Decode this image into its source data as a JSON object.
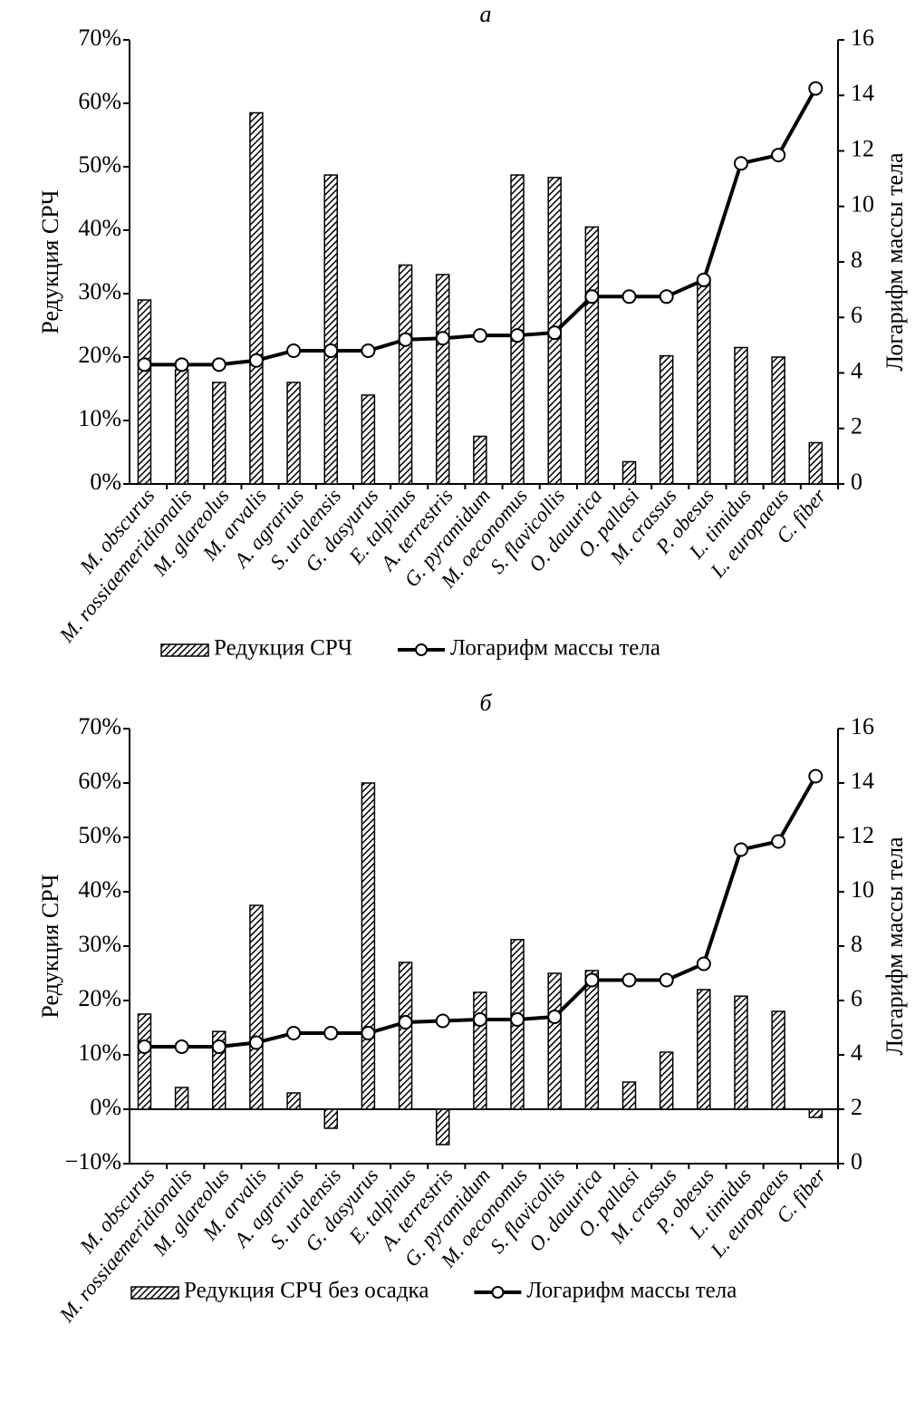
{
  "chart_data": [
    {
      "type": "bar",
      "title": "а",
      "y_label": "Редукция СРЧ",
      "y2_label": "Логарифм массы тела",
      "categories": [
        "M. obscurus",
        "M. rossiaemeridionalis",
        "M. glareolus",
        "M. arvalis",
        "A. agrarius",
        "S. uralensis",
        "G. dasyurus",
        "E. talpinus",
        "A. terrestris",
        "G. pyramidum",
        "M. oeconomus",
        "S. flavicollis",
        "O. dauurica",
        "O. pallasi",
        "M. crassus",
        "P. obesus",
        "L. timidus",
        "L. europaeus",
        "C. fiber"
      ],
      "series": [
        {
          "name": "Редукция СРЧ",
          "type": "bar",
          "color": "#000000",
          "values": [
            29,
            18,
            16,
            58.5,
            16,
            48.7,
            14,
            34.5,
            33,
            7.5,
            48.7,
            48.3,
            40.5,
            3.5,
            20.2,
            32,
            21.5,
            20,
            6.5
          ]
        },
        {
          "name": "Логарифм массы тела",
          "type": "line",
          "axis": "y2",
          "color": "#000000",
          "values": [
            4.3,
            4.3,
            4.3,
            4.45,
            4.8,
            4.8,
            4.8,
            5.2,
            5.25,
            5.35,
            5.35,
            5.45,
            6.75,
            6.75,
            6.75,
            7.35,
            11.55,
            11.85,
            14.25
          ]
        }
      ],
      "ylim": [
        0,
        70
      ],
      "yticks": [
        {
          "value": 0,
          "label": "0%"
        },
        {
          "value": 10,
          "label": "10%"
        },
        {
          "value": 20,
          "label": "20%"
        },
        {
          "value": 30,
          "label": "30%"
        },
        {
          "value": 40,
          "label": "40%"
        },
        {
          "value": 50,
          "label": "50%"
        },
        {
          "value": 60,
          "label": "60%"
        },
        {
          "value": 70,
          "label": "70%"
        }
      ],
      "y2lim": [
        0,
        16
      ],
      "y2ticks": [
        0,
        2,
        4,
        6,
        8,
        10,
        12,
        14,
        16
      ],
      "legend": "bottom"
    },
    {
      "type": "bar",
      "title": "б",
      "y_label": "Редукция СРЧ",
      "y2_label": "Логарифм массы тела",
      "categories": [
        "M. obscurus",
        "M. rossiaemeridionalis",
        "M. glareolus",
        "M. arvalis",
        "A. agrarius",
        "S. uralensis",
        "G. dasyurus",
        "E. talpinus",
        "A. terrestris",
        "G. pyramidum",
        "M. oeconomus",
        "S. flavicollis",
        "O. dauurica",
        "O. pallasi",
        "M. crassus",
        "P. obesus",
        "L. timidus",
        "L. europaeus",
        "C. fiber"
      ],
      "series": [
        {
          "name": "Редукция СРЧ без осадка",
          "type": "bar",
          "color": "#000000",
          "values": [
            17.5,
            4,
            14.3,
            37.5,
            3,
            -3.5,
            60,
            27,
            -6.5,
            21.5,
            31.2,
            25,
            25.5,
            5,
            10.5,
            22,
            20.8,
            18,
            -1.5
          ]
        },
        {
          "name": "Логарифм массы тела",
          "type": "line",
          "axis": "y2",
          "color": "#000000",
          "values": [
            4.3,
            4.3,
            4.3,
            4.45,
            4.8,
            4.8,
            4.8,
            5.2,
            5.25,
            5.3,
            5.3,
            5.4,
            6.75,
            6.75,
            6.75,
            7.35,
            11.55,
            11.85,
            14.25
          ]
        }
      ],
      "ylim": [
        -10,
        70
      ],
      "yticks": [
        {
          "value": -10,
          "label": "−10%"
        },
        {
          "value": 0,
          "label": "0%"
        },
        {
          "value": 10,
          "label": "10%"
        },
        {
          "value": 20,
          "label": "20%"
        },
        {
          "value": 30,
          "label": "30%"
        },
        {
          "value": 40,
          "label": "40%"
        },
        {
          "value": 50,
          "label": "50%"
        },
        {
          "value": 60,
          "label": "60%"
        },
        {
          "value": 70,
          "label": "70%"
        }
      ],
      "y2lim": [
        0,
        16
      ],
      "y2ticks": [
        0,
        2,
        4,
        6,
        8,
        10,
        12,
        14,
        16
      ],
      "legend": "bottom"
    }
  ]
}
